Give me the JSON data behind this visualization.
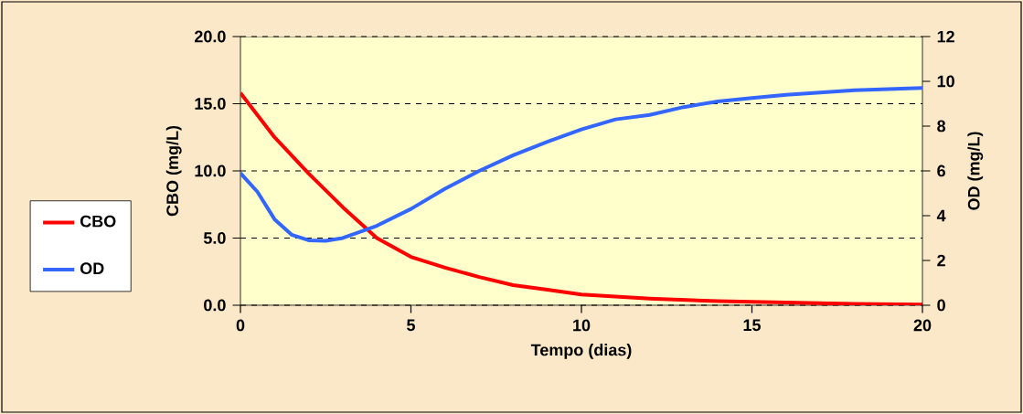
{
  "chart_data": {
    "type": "line",
    "xlabel": "Tempo (dias)",
    "ylabel": "CBO (mg/L)",
    "y2label": "OD (mg/L)",
    "xlim": [
      0,
      20
    ],
    "xticks": [
      0,
      5,
      10,
      15,
      20
    ],
    "ylim": [
      0,
      20
    ],
    "yticks": [
      {
        "value": 0,
        "label": "0.0"
      },
      {
        "value": 5,
        "label": "5.0"
      },
      {
        "value": 10,
        "label": "10.0"
      },
      {
        "value": 15,
        "label": "15.0"
      },
      {
        "value": 20,
        "label": "20.0"
      }
    ],
    "y2lim": [
      0,
      12
    ],
    "y2ticks": [
      0,
      2,
      4,
      6,
      8,
      10,
      12
    ],
    "grid": "y",
    "line_style": "solid",
    "marker": "none",
    "legend": "left",
    "x": [
      0,
      1,
      2,
      3,
      4,
      5,
      6,
      7,
      8,
      9,
      10,
      12,
      14,
      16,
      18,
      20
    ],
    "series": [
      {
        "name": "CBO",
        "color": "#ff0000",
        "values": [
          15.8,
          12.5,
          9.8,
          7.3,
          5.0,
          3.6,
          2.8,
          2.1,
          1.5,
          1.15,
          0.8,
          0.5,
          0.3,
          0.2,
          0.1,
          0.05
        ]
      },
      {
        "name": "OD",
        "color": "#3366ff",
        "axis": "y2",
        "x": [
          0,
          0.5,
          1,
          1.5,
          2,
          2.5,
          3,
          4,
          5,
          6,
          7,
          8,
          9,
          10,
          11,
          12,
          13,
          14,
          15,
          16,
          17,
          18,
          19,
          20
        ],
        "values": [
          5.9,
          5.06,
          3.84,
          3.15,
          2.9,
          2.88,
          3.0,
          3.55,
          4.3,
          5.2,
          6.0,
          6.7,
          7.3,
          7.85,
          8.3,
          8.5,
          8.85,
          9.1,
          9.25,
          9.4,
          9.5,
          9.6,
          9.65,
          9.7
        ]
      }
    ]
  }
}
